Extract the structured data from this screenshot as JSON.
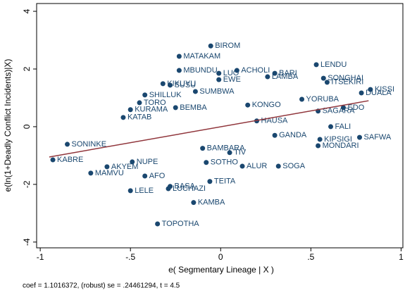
{
  "chart_data": {
    "type": "scatter",
    "x_label": "e( Segmentary Lineage | X )",
    "y_label": "e(ln(1+Deadly Conflict Incidents)|X)",
    "note": "coef = 1.1016372, (robust) se = .24461294, t = 4.5",
    "xlim": [
      -1.02,
      1.01
    ],
    "ylim": [
      -4.2,
      4.27
    ],
    "xticks": [
      -1,
      {
        "value": -0.5,
        "label": "-.5"
      },
      0,
      {
        "value": 0.5,
        "label": ".5"
      },
      1
    ],
    "yticks": [
      -4,
      -2,
      0,
      2,
      4
    ],
    "color": "#1a476f",
    "labels": [
      "BIROM",
      "MATAKAM",
      "LENDU",
      "MBUNDU",
      "ACHOLI",
      "LUO",
      "BARI",
      "EWE",
      "LAMBA",
      "SONGHAI",
      "ITSEKIRI",
      "KIKUYU",
      "SUSU",
      "KISSI",
      "DUALA",
      "SUMBWA",
      "SHILLUK",
      "TORO",
      "KURAMA",
      "KATAB",
      "BEMBA",
      "SAGARA",
      "EDO",
      "FALI",
      "SAFWA",
      "KIPSIGI",
      "MONDARI",
      "SONINKE",
      "KABRE",
      "NUPE",
      "AKYEM",
      "MAMVU",
      "AFO",
      "SOTHO",
      "ALUR",
      "SOGA",
      "TEITA",
      "LELE",
      "BASA",
      "LUCHAZI",
      "KAMBA",
      "TOPOTHA",
      "KONGO",
      "GANDA",
      "YORUBA",
      "BAMBARA",
      "TIV",
      "HAUSA"
    ],
    "x": [
      -0.055,
      -0.23,
      0.53,
      -0.23,
      0.09,
      -0.01,
      0.3,
      -0.01,
      0.26,
      0.57,
      0.59,
      -0.32,
      -0.28,
      0.83,
      0.78,
      -0.14,
      -0.42,
      -0.45,
      -0.5,
      -0.54,
      -0.25,
      0.54,
      0.68,
      0.61,
      0.77,
      0.55,
      0.54,
      -0.85,
      -0.93,
      -0.49,
      -0.63,
      -0.72,
      -0.42,
      -0.08,
      0.12,
      0.32,
      -0.06,
      -0.5,
      -0.28,
      -0.29,
      -0.15,
      -0.35,
      0.15,
      0.3,
      0.45,
      -0.1,
      0.05,
      0.2
    ],
    "values": [
      2.8,
      2.44,
      2.15,
      1.95,
      1.95,
      1.85,
      1.85,
      1.63,
      1.73,
      1.68,
      1.54,
      1.49,
      1.44,
      1.29,
      1.17,
      1.22,
      1.1,
      0.83,
      0.59,
      0.32,
      0.66,
      0.54,
      0.66,
      0.0,
      -0.37,
      -0.44,
      -0.66,
      -0.61,
      -1.15,
      -1.22,
      -1.39,
      -1.61,
      -1.71,
      -1.24,
      -1.37,
      -1.37,
      -1.9,
      -2.22,
      -2.07,
      -2.15,
      -2.63,
      -3.37,
      0.75,
      -0.3,
      0.95,
      -0.75,
      -0.9,
      0.2
    ],
    "fit": {
      "x": [
        -0.95,
        0.82
      ],
      "values": [
        -1.05,
        0.9
      ],
      "color": "#90353b"
    }
  }
}
